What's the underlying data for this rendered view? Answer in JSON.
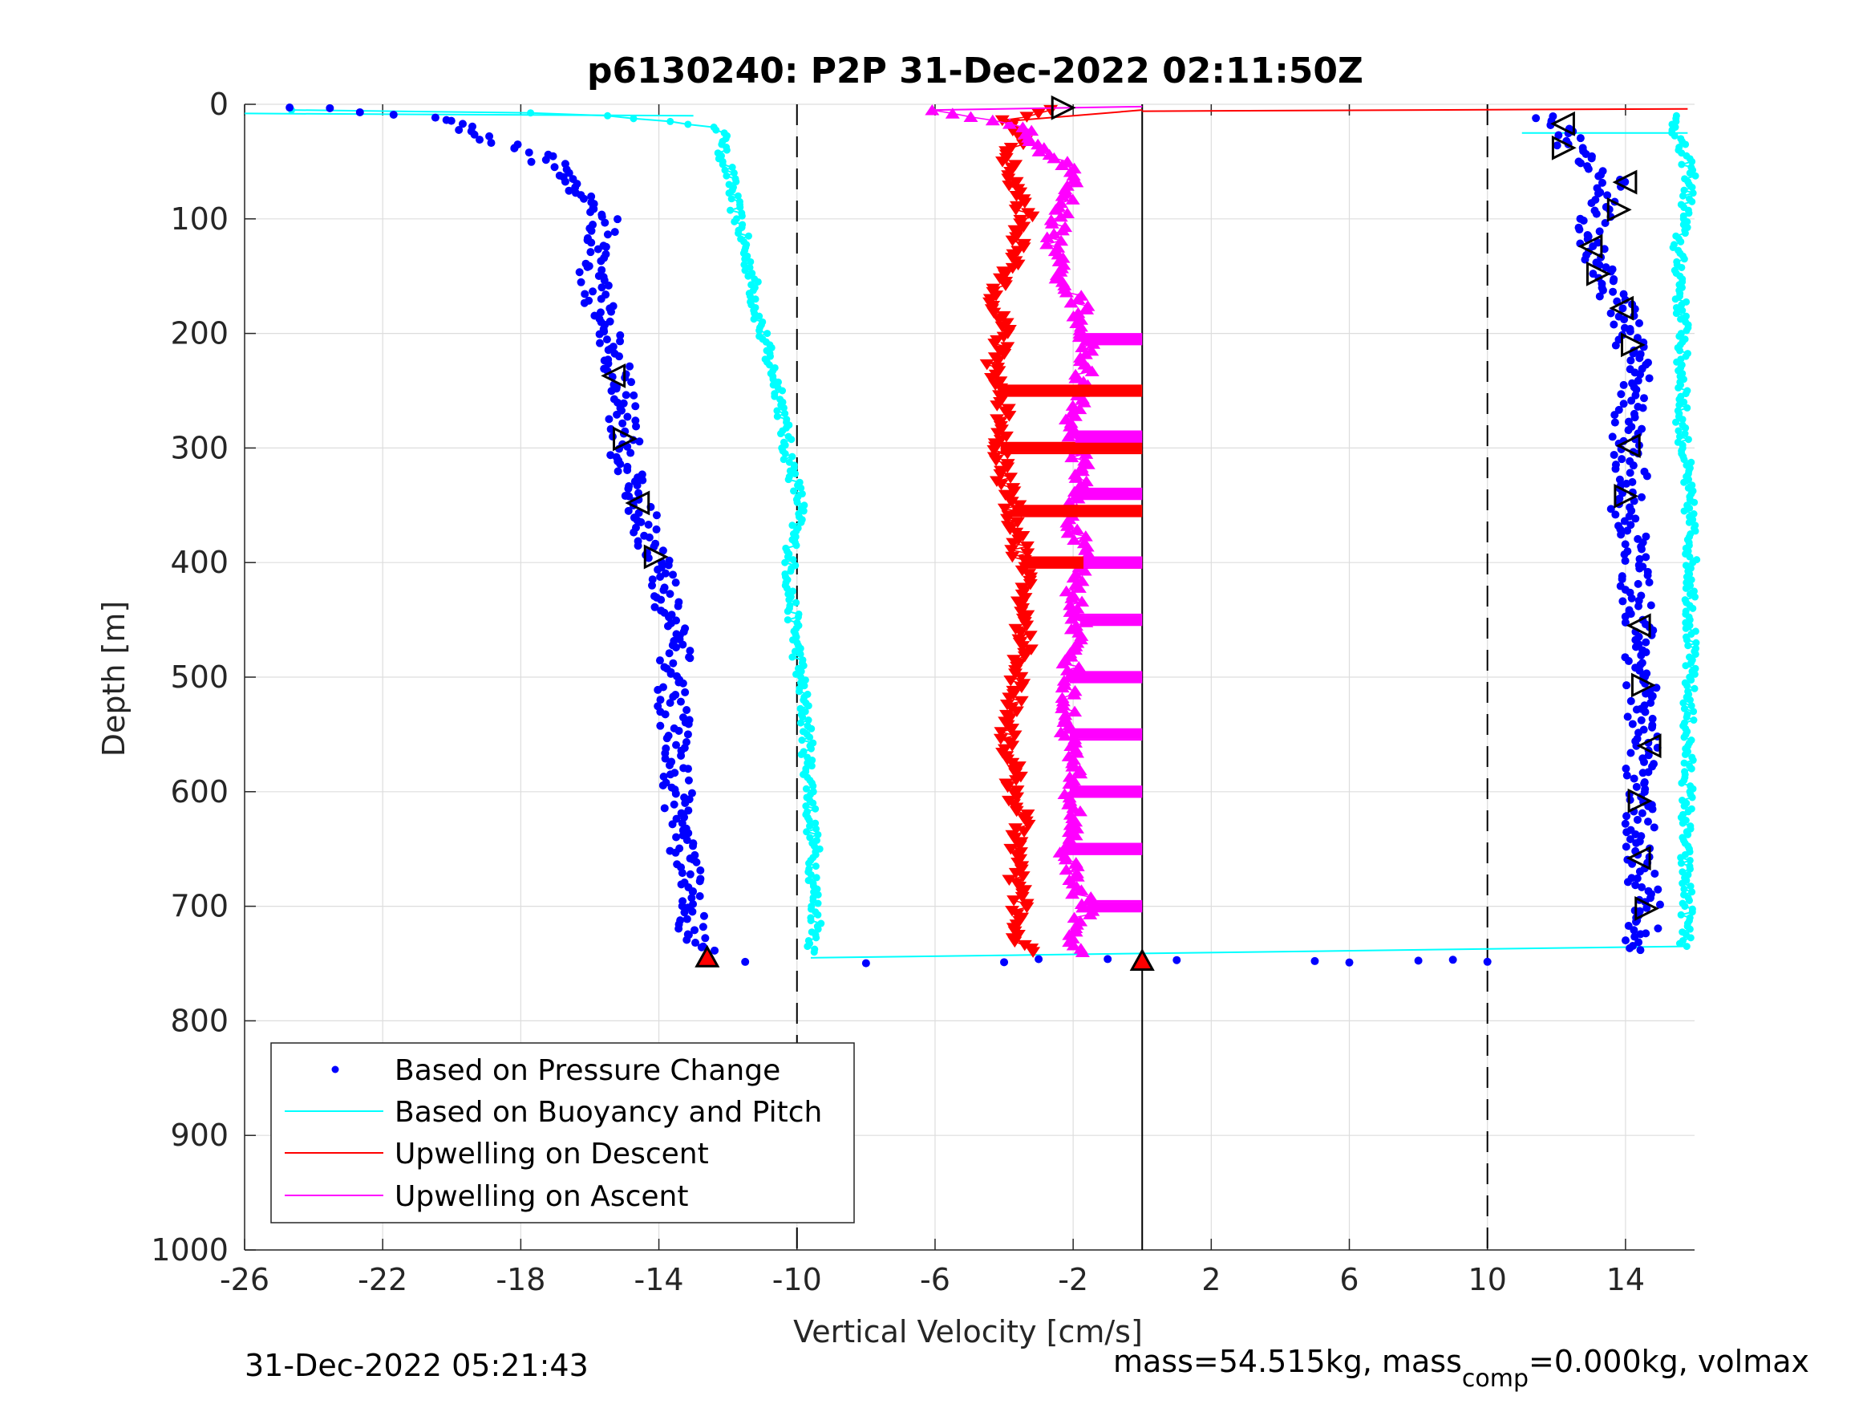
{
  "chart_data": {
    "type": "scatter",
    "title": "p6130240: P2P 31-Dec-2022 02:11:50Z",
    "xlabel": "Vertical Velocity [cm/s]",
    "ylabel": "Depth [m]",
    "xlim": [
      -26,
      16
    ],
    "ylim": [
      0,
      1000
    ],
    "y_reversed": true,
    "xticks": [
      -26,
      -22,
      -18,
      -14,
      -10,
      -6,
      -2,
      2,
      6,
      10,
      14
    ],
    "xtick_labels": [
      "-26",
      "-22",
      "-18",
      "-14",
      "-10",
      "-6",
      "-2",
      "2",
      "6",
      "10",
      "14"
    ],
    "yticks": [
      0,
      100,
      200,
      300,
      400,
      500,
      600,
      700,
      800,
      900,
      1000
    ],
    "ytick_labels": [
      "0",
      "100",
      "200",
      "300",
      "400",
      "500",
      "600",
      "700",
      "800",
      "900",
      "1000"
    ],
    "grid": true,
    "legend_position": "bottom-left",
    "reference_lines": {
      "dashed_x": [
        -10,
        10
      ],
      "solid_x": [
        0
      ]
    },
    "series": [
      {
        "name": "Based on Pressure Change",
        "color": "#0000ff",
        "marker": "dot",
        "descent": {
          "depth": [
            2,
            10,
            20,
            30,
            45,
            60,
            80,
            100,
            125,
            150,
            175,
            200,
            225,
            250,
            275,
            300,
            325,
            350,
            375,
            400,
            425,
            450,
            475,
            500,
            525,
            550,
            575,
            600,
            625,
            650,
            675,
            700,
            720,
            740
          ],
          "velocity": [
            -25,
            -21,
            -19.5,
            -19,
            -17.5,
            -16.8,
            -16,
            -15.6,
            -15.8,
            -15.9,
            -15.7,
            -15.5,
            -15.3,
            -15.1,
            -15,
            -15,
            -14.8,
            -14.6,
            -14.3,
            -14,
            -13.9,
            -13.7,
            -13.5,
            -13.6,
            -13.6,
            -13.5,
            -13.6,
            -13.4,
            -13.4,
            -13.3,
            -13.2,
            -13.1,
            -13,
            -12.6
          ]
        },
        "ascent": {
          "depth": [
            740,
            720,
            700,
            675,
            650,
            625,
            600,
            575,
            550,
            525,
            500,
            475,
            450,
            425,
            400,
            375,
            350,
            325,
            300,
            275,
            250,
            225,
            200,
            175,
            150,
            125,
            100,
            80,
            60,
            40,
            25,
            10
          ],
          "velocity": [
            14.2,
            14.5,
            14.6,
            14.5,
            14.4,
            14.4,
            14.3,
            14.5,
            14.5,
            14.4,
            14.5,
            14.4,
            14.4,
            14.3,
            14.2,
            14.2,
            14.0,
            14.2,
            14.0,
            14.1,
            14.3,
            14.2,
            14.1,
            13.8,
            13.4,
            13.0,
            13.1,
            13.6,
            13.5,
            12.5,
            12.2,
            11.5
          ]
        },
        "apogee_velocity": [
          -12.6,
          -11.5,
          -8,
          -4,
          -3,
          -1,
          1,
          5,
          6,
          8,
          9,
          10
        ],
        "apogee_depth": 748
      },
      {
        "name": "Based on Buoyancy and Pitch",
        "color": "#00ffff",
        "marker": "line",
        "descent": {
          "depth": [
            5,
            8,
            15,
            20,
            30,
            40,
            55,
            70,
            90,
            110,
            130,
            150,
            175,
            200,
            225,
            250,
            275,
            300,
            325,
            350,
            375,
            400,
            425,
            450,
            475,
            500,
            525,
            550,
            575,
            600,
            625,
            650,
            675,
            700,
            720,
            740
          ],
          "velocity": [
            -24.5,
            -16.5,
            -13.5,
            -12.5,
            -12,
            -12.2,
            -12,
            -11.9,
            -11.8,
            -11.6,
            -11.5,
            -11.3,
            -11.2,
            -11,
            -10.8,
            -10.5,
            -10.4,
            -10.3,
            -10.1,
            -9.9,
            -10.1,
            -10.2,
            -10.2,
            -10.1,
            -10,
            -9.9,
            -9.8,
            -9.7,
            -9.7,
            -9.6,
            -9.6,
            -9.5,
            -9.5,
            -9.5,
            -9.4,
            -9.6
          ]
        },
        "ascent": {
          "depth": [
            735,
            700,
            650,
            600,
            550,
            450,
            400,
            370,
            340,
            300,
            270,
            250,
            225,
            200,
            175,
            150,
            125,
            100,
            80,
            60,
            40,
            25,
            10
          ],
          "velocity": [
            15.7,
            15.8,
            15.7,
            15.8,
            15.8,
            15.9,
            15.9,
            15.9,
            15.8,
            15.7,
            15.6,
            15.7,
            15.6,
            15.7,
            15.6,
            15.6,
            15.5,
            15.7,
            15.8,
            15.9,
            15.6,
            15.5,
            15.4
          ]
        }
      },
      {
        "name": "Upwelling on Descent",
        "color": "#ff0000",
        "marker": "triangle-down",
        "depth": [
          5,
          15,
          30,
          45,
          60,
          75,
          100,
          125,
          150,
          175,
          200,
          225,
          250,
          275,
          300,
          325,
          350,
          375,
          400,
          425,
          450,
          475,
          500,
          525,
          550,
          575,
          600,
          625,
          650,
          675,
          700,
          725,
          740
        ],
        "velocity": [
          -2.5,
          -4,
          -3.5,
          -3.8,
          -4,
          -3.6,
          -3.4,
          -3.6,
          -4.0,
          -4.2,
          -4.0,
          -4.3,
          -4.1,
          -4.0,
          -4.1,
          -4.0,
          -3.8,
          -3.6,
          -3.5,
          -3.4,
          -3.5,
          -3.4,
          -3.6,
          -3.7,
          -3.9,
          -3.8,
          -3.7,
          -3.5,
          -3.6,
          -3.7,
          -3.5,
          -3.8,
          -3.2
        ]
      },
      {
        "name": "Upwelling on Ascent",
        "color": "#ff00ff",
        "marker": "triangle-up",
        "depth": [
          740,
          725,
          700,
          675,
          650,
          625,
          600,
          575,
          550,
          525,
          500,
          475,
          450,
          425,
          400,
          375,
          350,
          325,
          300,
          275,
          250,
          225,
          200,
          175,
          150,
          125,
          100,
          80,
          60,
          40,
          20,
          5
        ],
        "velocity": [
          -1.8,
          -2.0,
          -1.6,
          -2.0,
          -2.2,
          -1.9,
          -2.1,
          -2.0,
          -2.1,
          -2.2,
          -2.1,
          -2.0,
          -1.8,
          -2.0,
          -1.7,
          -1.9,
          -2.1,
          -1.7,
          -1.9,
          -2.0,
          -1.8,
          -1.6,
          -1.7,
          -1.8,
          -2.3,
          -2.6,
          -2.4,
          -2.2,
          -2.0,
          -2.8,
          -3.5,
          -6
        ]
      }
    ],
    "horizontal_bands": {
      "descent_depths": [
        250,
        300,
        355,
        400
      ],
      "ascent_depths": [
        205,
        290,
        340,
        400,
        450,
        500,
        550,
        600,
        650,
        700
      ],
      "to_velocity": 0
    },
    "markers": [
      {
        "shape": "triangle-right",
        "x": -2.3,
        "y": 3
      },
      {
        "shape": "triangle-left",
        "x": -15.3,
        "y": 237
      },
      {
        "shape": "triangle-right",
        "x": -15.0,
        "y": 292
      },
      {
        "shape": "triangle-left",
        "x": -14.6,
        "y": 348
      },
      {
        "shape": "triangle-right",
        "x": -14.1,
        "y": 395
      },
      {
        "shape": "triangle-left",
        "x": 12.2,
        "y": 17
      },
      {
        "shape": "triangle-right",
        "x": 12.2,
        "y": 38
      },
      {
        "shape": "triangle-left",
        "x": 14.0,
        "y": 68
      },
      {
        "shape": "triangle-right",
        "x": 13.8,
        "y": 92
      },
      {
        "shape": "triangle-left",
        "x": 13.0,
        "y": 124
      },
      {
        "shape": "triangle-right",
        "x": 13.2,
        "y": 148
      },
      {
        "shape": "triangle-left",
        "x": 13.9,
        "y": 178
      },
      {
        "shape": "triangle-right",
        "x": 14.2,
        "y": 210
      },
      {
        "shape": "triangle-left",
        "x": 14.1,
        "y": 298
      },
      {
        "shape": "triangle-right",
        "x": 14.0,
        "y": 342
      },
      {
        "shape": "triangle-left",
        "x": 14.4,
        "y": 455
      },
      {
        "shape": "triangle-right",
        "x": 14.5,
        "y": 507
      },
      {
        "shape": "triangle-left",
        "x": 14.7,
        "y": 560
      },
      {
        "shape": "triangle-right",
        "x": 14.4,
        "y": 608
      },
      {
        "shape": "triangle-left",
        "x": 14.4,
        "y": 658
      },
      {
        "shape": "triangle-right",
        "x": 14.6,
        "y": 702
      },
      {
        "shape": "triangle-up-red",
        "x": -12.6,
        "y": 745
      },
      {
        "shape": "triangle-up-red",
        "x": 0,
        "y": 748
      }
    ],
    "legend": [
      {
        "label": "Based on Pressure Change",
        "color": "#0000ff",
        "style": "dot"
      },
      {
        "label": "Based on Buoyancy and Pitch",
        "color": "#00ffff",
        "style": "line"
      },
      {
        "label": "Upwelling on Descent",
        "color": "#ff0000",
        "style": "line"
      },
      {
        "label": "Upwelling on Ascent",
        "color": "#ff00ff",
        "style": "line"
      }
    ]
  },
  "footer": {
    "timestamp": "31-Dec-2022 05:21:43",
    "mass_text_a": "mass=54.515kg, mass",
    "mass_sub": "comp",
    "mass_text_b": "=0.000kg, volmax"
  }
}
